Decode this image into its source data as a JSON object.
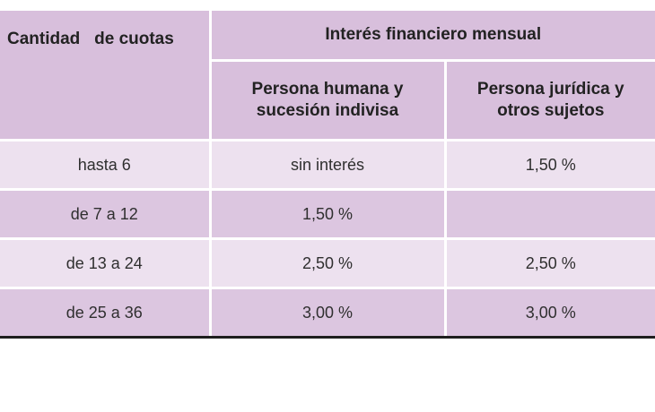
{
  "table": {
    "header": {
      "quantity_label": "Cantidad   de cuotas",
      "interest_label": "Interés financiero mensual",
      "human_label_line1": "Persona humana y",
      "human_label_line2": "sucesión indivisa",
      "legal_label_line1": "Persona jurídica y",
      "legal_label_line2": "otros sujetos"
    },
    "rows": [
      {
        "cuotas": "hasta 6",
        "humana": "sin interés",
        "juridica": "1,50 %"
      },
      {
        "cuotas": "de 7 a 12",
        "humana": "1,50 %",
        "juridica": ""
      },
      {
        "cuotas": "de 13 a 24",
        "humana": "2,50 %",
        "juridica": "2,50 %"
      },
      {
        "cuotas": "de 25 a 36",
        "humana": "3,00 %",
        "juridica": "3,00 %"
      }
    ]
  },
  "colors": {
    "header_bg": "#d8bfdc",
    "row_light": "#ede1ef",
    "row_dark": "#dcc6e0",
    "bottom_rule": "#1e1e1e"
  }
}
